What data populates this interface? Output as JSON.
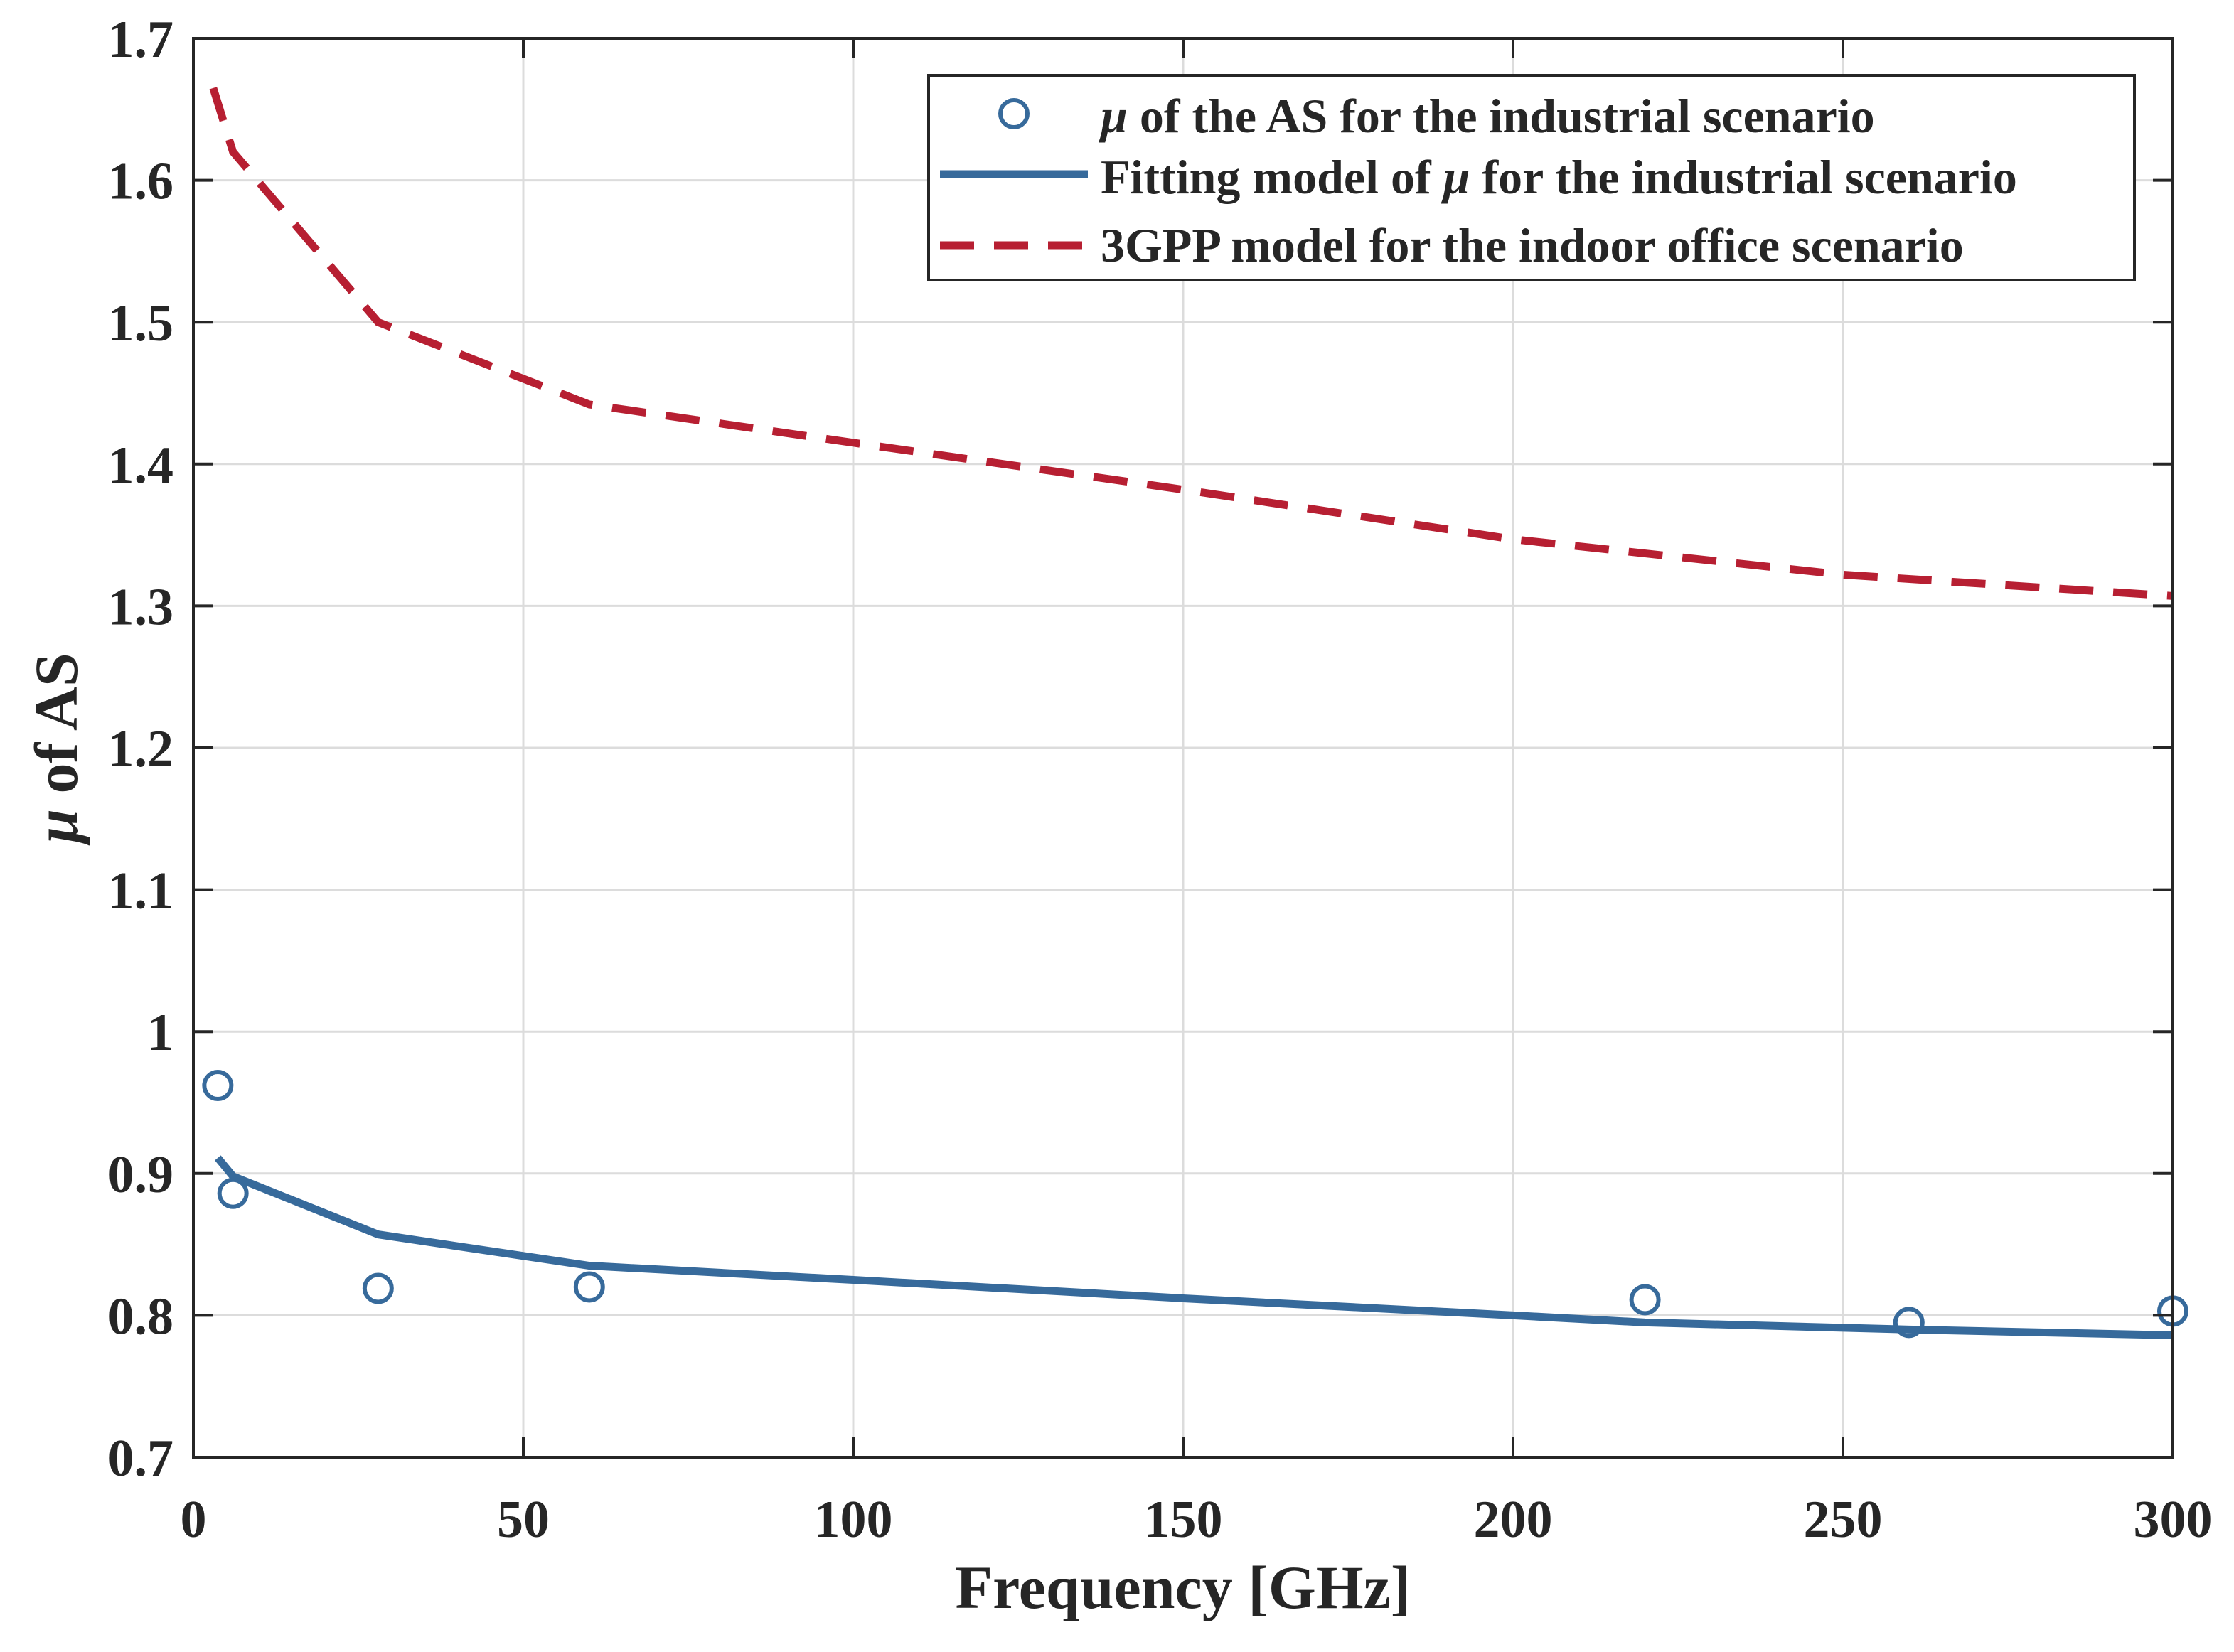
{
  "chart_data": {
    "type": "line",
    "title": "",
    "xlabel": "Frequency [GHz]",
    "ylabel_symbol": "μ",
    "ylabel_rest": " of AS",
    "xlim": [
      0,
      300
    ],
    "ylim": [
      0.7,
      1.7
    ],
    "xticks": [
      0,
      50,
      100,
      150,
      200,
      250,
      300
    ],
    "xtick_labels": [
      "0",
      "50",
      "100",
      "150",
      "200",
      "250",
      "300"
    ],
    "yticks": [
      0.7,
      0.8,
      0.9,
      1.0,
      1.1,
      1.2,
      1.3,
      1.4,
      1.5,
      1.6,
      1.7
    ],
    "ytick_labels": [
      "0.7",
      "0.8",
      "0.9",
      "1",
      "1.1",
      "1.2",
      "1.3",
      "1.4",
      "1.5",
      "1.6",
      "1.7"
    ],
    "grid": true,
    "legend_position": "top-right",
    "colors": {
      "blue": "#376a9b",
      "red": "#b71f32"
    },
    "series": [
      {
        "name": "μ of the AS for the industrial scenario",
        "legend_parts": [
          "μ",
          " of the AS for the industrial scenario"
        ],
        "style": "markers",
        "x": [
          3.7,
          6,
          28,
          60,
          220,
          260,
          300
        ],
        "y": [
          0.962,
          0.886,
          0.819,
          0.82,
          0.811,
          0.795,
          0.803
        ]
      },
      {
        "name": "Fitting model of μ for the industrial scenario",
        "legend_parts": [
          "Fitting model of ",
          "μ",
          " for the industrial scenario"
        ],
        "style": "solid",
        "x": [
          3.7,
          6,
          28,
          60,
          100,
          150,
          200,
          220,
          260,
          300
        ],
        "y": [
          0.911,
          0.898,
          0.857,
          0.835,
          0.825,
          0.812,
          0.8,
          0.795,
          0.79,
          0.786
        ]
      },
      {
        "name": "3GPP model for the indoor office scenario",
        "legend_parts": [
          "3GPP model for the indoor office scenario"
        ],
        "style": "dashed",
        "x": [
          3,
          6,
          28,
          60,
          100,
          150,
          200,
          250,
          300
        ],
        "y": [
          1.665,
          1.62,
          1.5,
          1.442,
          1.415,
          1.382,
          1.347,
          1.322,
          1.307
        ]
      }
    ]
  }
}
